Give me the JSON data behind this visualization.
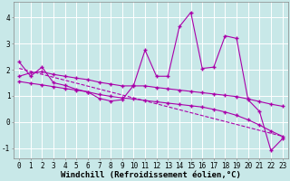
{
  "xlabel": "Windchill (Refroidissement éolien,°C)",
  "background_color": "#c8e8e8",
  "grid_color": "#ffffff",
  "line_color": "#aa00aa",
  "xlim": [
    -0.5,
    23.5
  ],
  "ylim": [
    -1.4,
    4.6
  ],
  "yticks": [
    -1,
    0,
    1,
    2,
    3,
    4
  ],
  "xticks": [
    0,
    1,
    2,
    3,
    4,
    5,
    6,
    7,
    8,
    9,
    10,
    11,
    12,
    13,
    14,
    15,
    16,
    17,
    18,
    19,
    20,
    21,
    22,
    23
  ],
  "main_x": [
    0,
    1,
    2,
    3,
    4,
    5,
    6,
    7,
    8,
    9,
    10,
    11,
    12,
    13,
    14,
    15,
    16,
    17,
    18,
    19,
    20,
    21,
    22,
    23
  ],
  "main_y": [
    2.3,
    1.75,
    2.1,
    1.5,
    1.4,
    1.25,
    1.15,
    0.9,
    0.8,
    0.85,
    1.4,
    2.75,
    1.75,
    1.75,
    3.65,
    4.2,
    2.05,
    2.1,
    3.3,
    3.2,
    0.85,
    0.4,
    -1.1,
    -0.65
  ],
  "upper_x": [
    0,
    1,
    2,
    3,
    4,
    5,
    6,
    7,
    8,
    9,
    10,
    11,
    12,
    13,
    14,
    15,
    16,
    17,
    18,
    19,
    20,
    21,
    22,
    23
  ],
  "upper_y": [
    1.75,
    1.88,
    1.92,
    1.82,
    1.75,
    1.68,
    1.62,
    1.52,
    1.45,
    1.38,
    1.38,
    1.38,
    1.32,
    1.27,
    1.22,
    1.17,
    1.12,
    1.07,
    1.02,
    0.97,
    0.88,
    0.78,
    0.68,
    0.6
  ],
  "lower_x": [
    0,
    1,
    2,
    3,
    4,
    5,
    6,
    7,
    8,
    9,
    10,
    11,
    12,
    13,
    14,
    15,
    16,
    17,
    18,
    19,
    20,
    21,
    22,
    23
  ],
  "lower_y": [
    1.55,
    1.48,
    1.42,
    1.35,
    1.28,
    1.22,
    1.15,
    1.05,
    0.98,
    0.92,
    0.88,
    0.82,
    0.77,
    0.72,
    0.67,
    0.62,
    0.57,
    0.48,
    0.38,
    0.25,
    0.08,
    -0.12,
    -0.35,
    -0.55
  ],
  "trend_x": [
    0,
    23
  ],
  "trend_y": [
    2.05,
    -0.55
  ],
  "marker": "+",
  "markersize": 3,
  "linewidth": 0.8,
  "xlabel_fontsize": 6.5,
  "tick_fontsize": 5.5
}
